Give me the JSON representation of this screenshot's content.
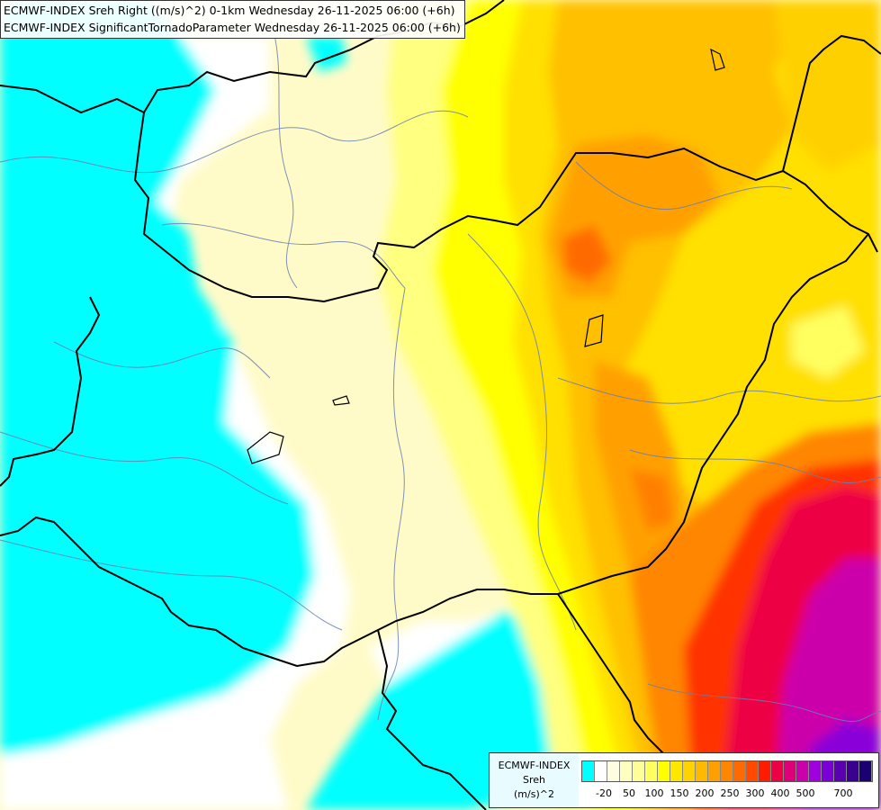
{
  "map": {
    "title_line1": "ECMWF-INDEX Sreh Right ((m/s)^2) 0-1km Wednesday 26-11-2025 06:00 (+6h)",
    "title_line2": "ECMWF-INDEX SignificantTornadoParameter Wednesday 26-11-2025 06:00 (+6h)"
  },
  "legend": {
    "source": "ECMWF-INDEX",
    "variable": "Sreh",
    "unit": "(m/s)^2",
    "colors": [
      "#00ffff",
      "#ffffff",
      "#fffde0",
      "#ffffc0",
      "#ffff98",
      "#ffff60",
      "#ffff00",
      "#ffe800",
      "#ffd200",
      "#ffba00",
      "#ffa000",
      "#ff8600",
      "#ff6a00",
      "#ff4a00",
      "#ff1c00",
      "#ee0044",
      "#dd0077",
      "#cc00aa",
      "#a000e0",
      "#7a00d8",
      "#5a00b0",
      "#3a0090",
      "#1a0070"
    ],
    "ticks": [
      "-20",
      "50",
      "100",
      "150",
      "200",
      "250",
      "300",
      "400",
      "500",
      "700"
    ]
  }
}
